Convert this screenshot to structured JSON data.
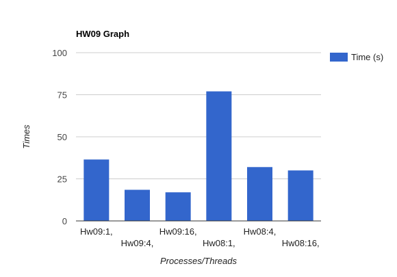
{
  "chart_data": {
    "type": "bar",
    "title": "HW09 Graph",
    "xlabel": "Processes/Threads",
    "ylabel": "Times",
    "categories": [
      "Hw09:1,",
      "Hw09:4,",
      "Hw09:16,",
      "Hw08:1,",
      "Hw08:4,",
      "Hw08:16,"
    ],
    "series": [
      {
        "name": "Time (s)",
        "values": [
          36.5,
          18.5,
          17,
          77,
          32,
          30
        ],
        "color": "#3366cc"
      }
    ],
    "ylim": [
      0,
      100
    ],
    "yticks": [
      "0",
      "25",
      "50",
      "75",
      "100"
    ],
    "grid": true,
    "legend_position": "right"
  }
}
